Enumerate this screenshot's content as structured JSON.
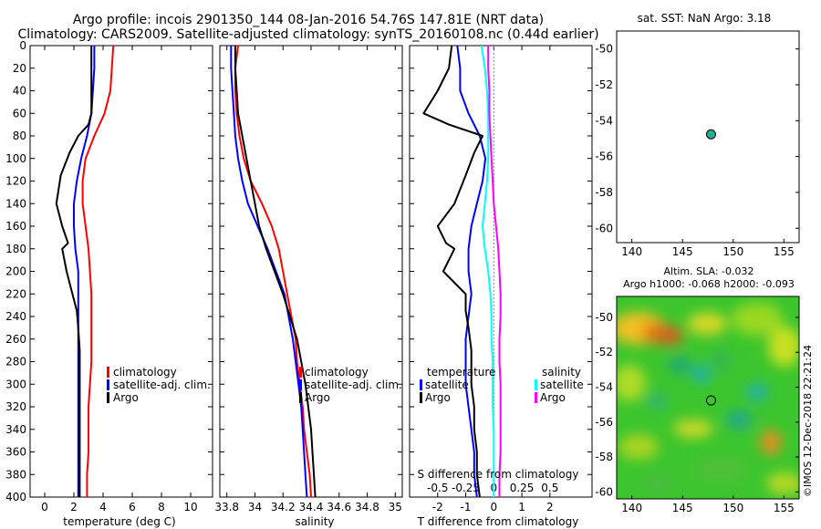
{
  "header": {
    "line1": "Argo profile: incois 2901350_144 08-Jan-2016 54.76S 147.81E (NRT data)",
    "line2": "Climatology: CARS2009. Satellite-adjusted climatology: synTS_20160108.nc (0.44d earlier)"
  },
  "colors": {
    "climatology": "#ff0000",
    "satellite": "#0000ff",
    "argo": "#000000",
    "salinity_satellite": "#00ffff",
    "salinity_argo": "#ff00ff"
  },
  "depth_ticks": [
    0,
    20,
    40,
    60,
    80,
    100,
    120,
    140,
    160,
    180,
    200,
    220,
    240,
    260,
    280,
    300,
    320,
    340,
    360,
    380,
    400
  ],
  "chart_data": [
    {
      "type": "line",
      "id": "temperature",
      "xlabel": "temperature (deg C)",
      "ylabel": "",
      "xlim": [
        -1,
        11.5
      ],
      "ylim": [
        400,
        0
      ],
      "xticks": [
        0,
        2,
        4,
        6,
        8,
        10
      ],
      "legend": {
        "position": "right",
        "entries": [
          "climatology",
          "satellite-adj. clim.",
          "Argo"
        ]
      },
      "series": [
        {
          "name": "climatology",
          "color": "#ff0000",
          "x": [
            4.7,
            4.6,
            4.5,
            4.1,
            3.4,
            2.8,
            2.6,
            2.6,
            2.8,
            3.0,
            3.1,
            3.2,
            3.2,
            3.2,
            3.2,
            3.1,
            3.0,
            3.0,
            3.0,
            2.9,
            2.9
          ],
          "y": [
            0,
            20,
            40,
            60,
            80,
            100,
            120,
            140,
            160,
            180,
            200,
            220,
            240,
            260,
            280,
            300,
            320,
            340,
            360,
            380,
            400
          ]
        },
        {
          "name": "satellite-adj. clim.",
          "color": "#0000ff",
          "x": [
            3.4,
            3.4,
            3.3,
            3.2,
            2.9,
            2.5,
            2.2,
            2.0,
            2.0,
            2.1,
            2.3,
            2.3,
            2.3,
            2.3,
            2.3,
            2.3,
            2.3,
            2.3,
            2.3,
            2.3,
            2.3
          ],
          "y": [
            0,
            20,
            40,
            60,
            80,
            100,
            120,
            140,
            160,
            180,
            200,
            220,
            240,
            260,
            280,
            300,
            320,
            340,
            360,
            380,
            400
          ]
        },
        {
          "name": "Argo",
          "color": "#000000",
          "x": [
            3.2,
            3.2,
            3.2,
            3.2,
            3.0,
            2.3,
            1.7,
            1.1,
            0.8,
            1.2,
            1.6,
            1.2,
            1.5,
            1.9,
            2.2,
            2.3,
            2.4,
            2.4,
            2.4,
            2.4,
            2.4,
            2.4,
            2.4
          ],
          "y": [
            0,
            20,
            40,
            60,
            70,
            80,
            95,
            115,
            140,
            160,
            175,
            180,
            200,
            220,
            235,
            250,
            270,
            300,
            320,
            340,
            360,
            380,
            400
          ]
        }
      ]
    },
    {
      "type": "line",
      "id": "salinity",
      "xlabel": "salinity",
      "ylabel": "",
      "xlim": [
        33.75,
        35.05
      ],
      "ylim": [
        400,
        0
      ],
      "xticks": [
        33.8,
        34,
        34.2,
        34.4,
        34.6,
        34.8,
        35
      ],
      "legend": {
        "position": "right",
        "entries": [
          "climatology",
          "satellite-adj. clim.",
          "Argo"
        ]
      },
      "series": [
        {
          "name": "climatology",
          "color": "#ff0000",
          "x": [
            33.88,
            33.86,
            33.86,
            33.87,
            33.89,
            33.92,
            33.97,
            34.05,
            34.12,
            34.17,
            34.2,
            34.23,
            34.26,
            34.29,
            34.3,
            34.32,
            34.34,
            34.35,
            34.37,
            34.39,
            34.4
          ],
          "y": [
            0,
            20,
            40,
            60,
            80,
            100,
            120,
            140,
            160,
            180,
            200,
            220,
            240,
            260,
            280,
            300,
            320,
            340,
            360,
            380,
            400
          ]
        },
        {
          "name": "satellite-adj. clim.",
          "color": "#0000ff",
          "x": [
            33.83,
            33.83,
            33.84,
            33.85,
            33.86,
            33.88,
            33.91,
            33.95,
            34.02,
            34.09,
            34.15,
            34.21,
            34.24,
            34.27,
            34.29,
            34.31,
            34.33,
            34.34,
            34.35,
            34.36,
            34.37
          ],
          "y": [
            0,
            20,
            40,
            60,
            80,
            100,
            120,
            140,
            160,
            180,
            200,
            220,
            240,
            260,
            280,
            300,
            320,
            340,
            360,
            380,
            400
          ]
        },
        {
          "name": "Argo",
          "color": "#000000",
          "x": [
            33.86,
            33.86,
            33.87,
            33.88,
            33.91,
            33.94,
            33.97,
            34.0,
            34.03,
            34.08,
            34.14,
            34.2,
            34.25,
            34.3,
            34.33,
            34.36,
            34.38,
            34.4,
            34.41,
            34.42,
            34.43
          ],
          "y": [
            0,
            20,
            40,
            60,
            80,
            100,
            120,
            140,
            160,
            180,
            200,
            220,
            240,
            260,
            280,
            300,
            320,
            340,
            360,
            380,
            400
          ]
        }
      ]
    },
    {
      "type": "line",
      "id": "difference",
      "xlabel": "T difference from climatology",
      "xlabel_top": "S difference from climatology",
      "xlim": [
        -3,
        3.5
      ],
      "ylim": [
        400,
        0
      ],
      "xticks": [
        -2,
        -1,
        0,
        1,
        2
      ],
      "xticks_s": [
        -0.5,
        -0.25,
        0,
        0.25,
        0.5
      ],
      "xlim_s": [
        -0.75,
        0.875
      ],
      "legend": {
        "position": "right",
        "entries": [
          "temperature",
          "satellite",
          "Argo",
          "salinity",
          "satellite",
          "Argo"
        ]
      },
      "series": [
        {
          "name": "temperature satellite",
          "color": "#0000ff",
          "x": [
            -1.3,
            -1.2,
            -1.2,
            -0.9,
            -0.5,
            -0.3,
            -0.4,
            -0.6,
            -0.8,
            -0.9,
            -0.9,
            -0.8,
            -0.9,
            -1.0,
            -1.0,
            -1.0,
            -0.9,
            -0.8,
            -0.7,
            -0.7,
            -0.6
          ],
          "y": [
            0,
            20,
            40,
            60,
            80,
            100,
            120,
            140,
            160,
            180,
            200,
            220,
            240,
            260,
            280,
            300,
            320,
            340,
            360,
            380,
            400
          ]
        },
        {
          "name": "temperature Argo",
          "color": "#000000",
          "x": [
            -1.5,
            -1.6,
            -2.0,
            -2.5,
            -1.6,
            -0.4,
            -0.7,
            -1.0,
            -1.4,
            -2.0,
            -1.7,
            -1.4,
            -1.8,
            -1.0,
            -1.0,
            -0.9,
            -0.8,
            -0.8,
            -0.7,
            -0.7,
            -0.6,
            -0.6,
            -0.5
          ],
          "y": [
            0,
            20,
            40,
            60,
            70,
            80,
            95,
            115,
            140,
            160,
            175,
            180,
            200,
            220,
            235,
            250,
            270,
            300,
            320,
            340,
            360,
            380,
            400
          ]
        },
        {
          "name": "salinity satellite",
          "color": "#00ffff",
          "x": [
            -0.11,
            -0.08,
            -0.06,
            -0.05,
            -0.05,
            -0.05,
            -0.06,
            -0.08,
            -0.1,
            -0.08,
            -0.05,
            -0.03,
            -0.02,
            -0.02,
            -0.01,
            -0.01,
            -0.01,
            0.0,
            0.0,
            0.0,
            0.0
          ],
          "y": [
            0,
            20,
            40,
            60,
            80,
            100,
            120,
            140,
            160,
            180,
            200,
            220,
            240,
            260,
            280,
            300,
            320,
            340,
            360,
            380,
            400
          ]
        },
        {
          "name": "salinity Argo",
          "color": "#ff00ff",
          "x": [
            -0.05,
            -0.05,
            -0.04,
            -0.04,
            -0.03,
            -0.02,
            -0.01,
            0.0,
            0.02,
            0.04,
            0.05,
            0.06,
            0.06,
            0.05,
            0.05,
            0.06,
            0.06,
            0.06,
            0.06,
            0.05,
            0.05
          ],
          "y": [
            0,
            20,
            40,
            60,
            80,
            100,
            120,
            140,
            160,
            180,
            200,
            220,
            240,
            260,
            280,
            300,
            320,
            340,
            360,
            380,
            400
          ]
        }
      ]
    }
  ],
  "maps": {
    "sst": {
      "title": "sat. SST: NaN Argo: 3.18",
      "xticks": [
        140,
        145,
        150,
        155
      ],
      "yticks": [
        -50,
        -52,
        -54,
        -56,
        -58,
        -60
      ],
      "xlim": [
        138.5,
        156.5
      ],
      "ylim": [
        -60.8,
        -49
      ]
    },
    "sla": {
      "title1": "Altim. SLA: -0.032",
      "title2": "Argo h1000: -0.068 h2000: -0.093",
      "xticks": [
        140,
        145,
        150,
        155
      ],
      "yticks": [
        -50,
        -52,
        -54,
        -56,
        -58,
        -60
      ],
      "xlim": [
        138.5,
        156.5
      ],
      "ylim": [
        -60.4,
        -48.8
      ]
    },
    "argo_position": {
      "lon": 147.81,
      "lat": -54.76
    }
  },
  "footer": {
    "stamp": "©IMOS 12-Dec-2018 22:21:24"
  }
}
